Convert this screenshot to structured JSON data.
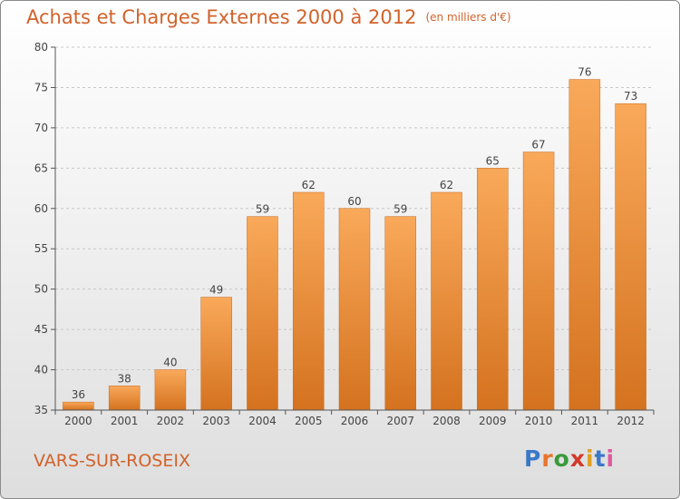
{
  "header": {
    "title": "Achats et Charges Externes 2000 à 2012",
    "subtitle": "(en milliers d'€)"
  },
  "footer": {
    "commune": "VARS-SUR-ROSEIX",
    "logo": {
      "text": "Proxiti",
      "letter_colors": [
        "#3a78c8",
        "#e8762c",
        "#3a9a3a",
        "#d23a2a",
        "#e0a020",
        "#3a78c8",
        "#e05aa0"
      ]
    }
  },
  "colors": {
    "bar_top": "#f9a95a",
    "bar_bottom": "#d4721f",
    "text": "#d2622a",
    "axis": "#555555",
    "grid": "#c8c8c8"
  },
  "chart_data": {
    "type": "bar",
    "categories": [
      "2000",
      "2001",
      "2002",
      "2003",
      "2004",
      "2005",
      "2006",
      "2007",
      "2008",
      "2009",
      "2010",
      "2011",
      "2012"
    ],
    "values": [
      36,
      38,
      40,
      49,
      59,
      62,
      60,
      59,
      62,
      65,
      67,
      76,
      73
    ],
    "yticks": [
      35,
      40,
      45,
      50,
      55,
      60,
      65,
      70,
      75,
      80
    ],
    "ylim": [
      35,
      80
    ],
    "grid": "horizontal dashed",
    "data_labels": true
  }
}
